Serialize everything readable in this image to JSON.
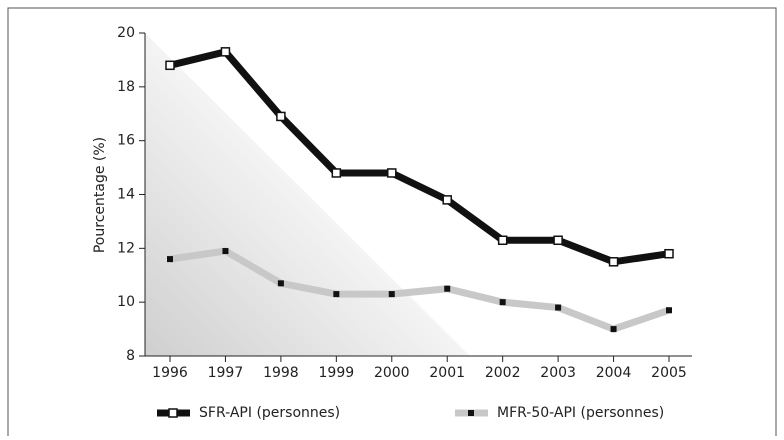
{
  "chart_data": {
    "type": "line",
    "y_label": "Pourcentage (%)",
    "categories": [
      "1996",
      "1997",
      "1998",
      "1999",
      "2000",
      "2001",
      "2002",
      "2003",
      "2004",
      "2005"
    ],
    "series": [
      {
        "name": "SFR-API (personnes)",
        "color": "#111111",
        "values": [
          18.8,
          19.3,
          16.9,
          14.8,
          14.8,
          13.8,
          12.3,
          12.3,
          11.5,
          11.8
        ]
      },
      {
        "name": "MFR-50-API (personnes)",
        "color": "#c8c8c8",
        "values": [
          11.6,
          11.9,
          10.7,
          10.3,
          10.3,
          10.5,
          10.0,
          9.8,
          9.0,
          9.7
        ]
      }
    ],
    "ylim": [
      8,
      20
    ],
    "yticks": [
      8,
      10,
      12,
      14,
      16,
      18,
      20
    ],
    "legend": "bottom"
  }
}
